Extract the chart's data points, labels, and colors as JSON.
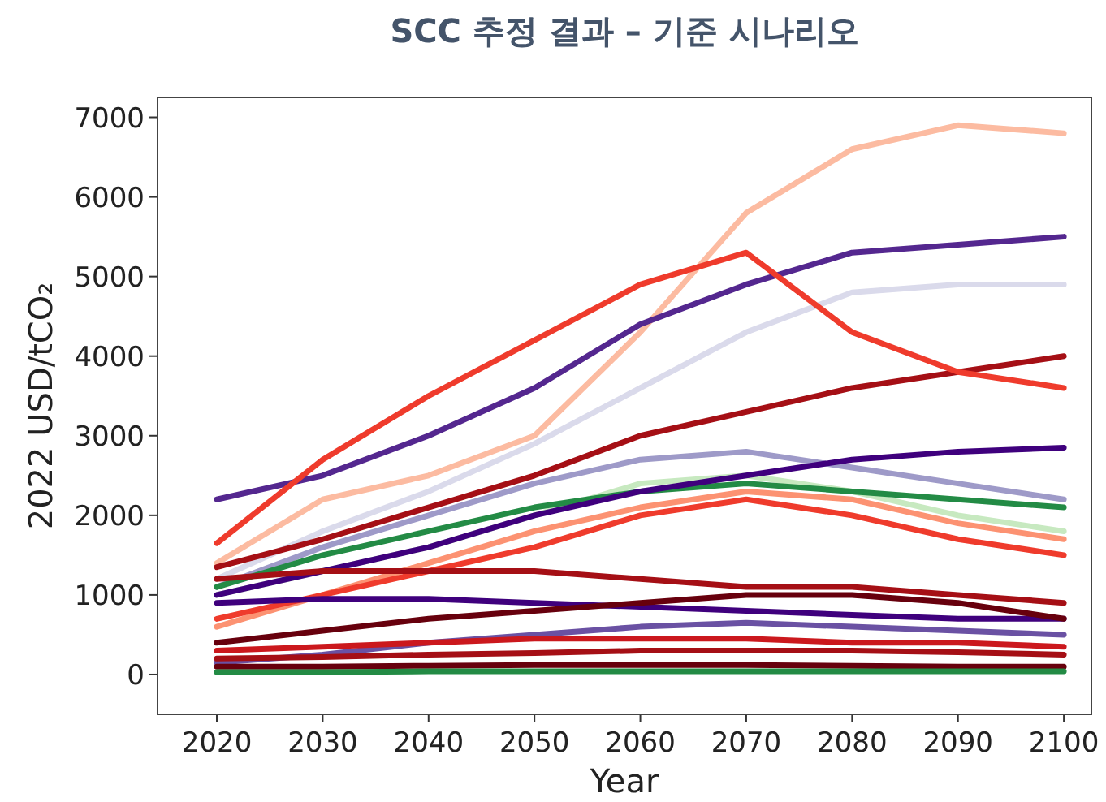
{
  "chart_data": {
    "type": "line",
    "title": "SCC 추정 결과 – 기준 시나리오",
    "xlabel": "Year",
    "ylabel": "2022 USD/tCO₂",
    "x": [
      2020,
      2030,
      2040,
      2050,
      2060,
      2070,
      2080,
      2090,
      2100
    ],
    "xlim": [
      2014.4,
      2102.6
    ],
    "ylim": [
      -500,
      7250
    ],
    "xticks": [
      2020,
      2030,
      2040,
      2050,
      2060,
      2070,
      2080,
      2090,
      2100
    ],
    "yticks": [
      0,
      1000,
      2000,
      3000,
      4000,
      5000,
      6000,
      7000
    ],
    "grid": false,
    "marker": "none",
    "line_style": "solid",
    "series": [
      {
        "color": "#fcbba1",
        "values": [
          1400,
          2200,
          2500,
          3000,
          4300,
          5800,
          6600,
          6900,
          6800
        ]
      },
      {
        "color": "#dadaeb",
        "values": [
          1200,
          1800,
          2300,
          2900,
          3600,
          4300,
          4800,
          4900,
          4900
        ]
      },
      {
        "color": "#c7e9c0",
        "values": [
          1000,
          1300,
          1600,
          2000,
          2400,
          2500,
          2300,
          2000,
          1800
        ]
      },
      {
        "color": "#9e9ac8",
        "values": [
          1100,
          1600,
          2000,
          2400,
          2700,
          2800,
          2600,
          2400,
          2200
        ]
      },
      {
        "color": "#54278f",
        "values": [
          2200,
          2500,
          3000,
          3600,
          4400,
          4900,
          5300,
          5400,
          5500
        ]
      },
      {
        "color": "#a50f15",
        "values": [
          1350,
          1700,
          2100,
          2500,
          3000,
          3300,
          3600,
          3800,
          4000
        ]
      },
      {
        "color": "#238b45",
        "values": [
          1100,
          1500,
          1800,
          2100,
          2300,
          2400,
          2300,
          2200,
          2100
        ]
      },
      {
        "color": "#3f007d",
        "values": [
          1000,
          1300,
          1600,
          2000,
          2300,
          2500,
          2700,
          2800,
          2850
        ]
      },
      {
        "color": "#fc9272",
        "values": [
          600,
          1000,
          1400,
          1800,
          2100,
          2300,
          2200,
          1900,
          1700
        ]
      },
      {
        "color": "#ef3b2c",
        "values": [
          700,
          1000,
          1300,
          1600,
          2000,
          2200,
          2000,
          1700,
          1500
        ]
      },
      {
        "color": "#a50f15",
        "values": [
          1200,
          1300,
          1300,
          1300,
          1200,
          1100,
          1100,
          1000,
          900
        ]
      },
      {
        "color": "#3f007d",
        "values": [
          900,
          950,
          950,
          900,
          850,
          800,
          750,
          700,
          700
        ]
      },
      {
        "color": "#67000d",
        "values": [
          400,
          550,
          700,
          800,
          900,
          1000,
          1000,
          900,
          700
        ]
      },
      {
        "color": "#6a51a3",
        "values": [
          150,
          250,
          400,
          500,
          600,
          650,
          600,
          550,
          500
        ]
      },
      {
        "color": "#cb181d",
        "values": [
          300,
          350,
          400,
          450,
          450,
          450,
          400,
          400,
          350
        ]
      },
      {
        "color": "#a50f15",
        "values": [
          200,
          220,
          250,
          270,
          300,
          300,
          300,
          280,
          250
        ]
      },
      {
        "color": "#67000d",
        "values": [
          100,
          100,
          110,
          120,
          120,
          120,
          110,
          100,
          100
        ]
      },
      {
        "color": "#238b45",
        "values": [
          30,
          30,
          40,
          40,
          40,
          40,
          40,
          40,
          40
        ]
      },
      {
        "color": "#ef3b2c",
        "values": [
          1650,
          2700,
          3500,
          4200,
          4900,
          5300,
          4300,
          3800,
          3600
        ]
      }
    ]
  }
}
